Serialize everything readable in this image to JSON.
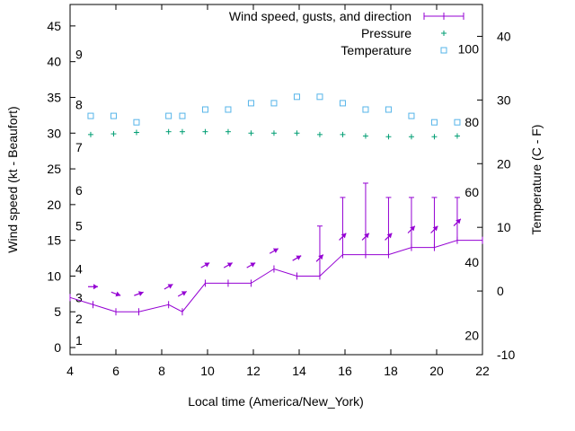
{
  "chart_data": {
    "type": "line",
    "xlabel": "Local time (America/New_York)",
    "ylabel": "Wind speed (kt - Beaufort)",
    "y2label": "Temperature (C - F)",
    "xlim": [
      4,
      22
    ],
    "ylim": [
      -1,
      48
    ],
    "y2lim": [
      -10,
      45
    ],
    "x_ticks": [
      4,
      6,
      8,
      10,
      12,
      14,
      16,
      18,
      20,
      22
    ],
    "y_ticks": [
      0,
      5,
      10,
      15,
      20,
      25,
      30,
      35,
      40,
      45
    ],
    "y2_ticks": [
      -10,
      0,
      10,
      20,
      30,
      40
    ],
    "beaufort_labels": [
      {
        "label": "1",
        "y": 1
      },
      {
        "label": "2",
        "y": 4
      },
      {
        "label": "3",
        "y": 7
      },
      {
        "label": "4",
        "y": 11
      },
      {
        "label": "5",
        "y": 17
      },
      {
        "label": "6",
        "y": 22
      },
      {
        "label": "7",
        "y": 28
      },
      {
        "label": "8",
        "y": 34
      },
      {
        "label": "9",
        "y": 41
      }
    ],
    "fahrenheit_labels": [
      {
        "label": "20",
        "y2": -7
      },
      {
        "label": "40",
        "y2": 4.5
      },
      {
        "label": "60",
        "y2": 15.5
      },
      {
        "label": "80",
        "y2": 26.5
      },
      {
        "label": "100",
        "y2": 38
      }
    ],
    "legend_position": "top-right",
    "colors": {
      "wind": "#9400d3",
      "pressure": "#009e73",
      "temperature": "#56b4e9"
    },
    "series": [
      {
        "name": "Wind speed, gusts, and direction",
        "x": [
          4,
          5,
          6,
          7,
          8.3,
          8.9,
          9.9,
          10.9,
          11.9,
          12.9,
          13.9,
          14.9,
          15.9,
          16.9,
          17.9,
          18.9,
          19.9,
          20.9,
          22
        ],
        "y": [
          7,
          6,
          5,
          5,
          6,
          5,
          9,
          9,
          9,
          11,
          10,
          10,
          13,
          13,
          13,
          14,
          14,
          15,
          15
        ],
        "gust": [
          null,
          null,
          null,
          null,
          null,
          null,
          null,
          null,
          null,
          null,
          null,
          17,
          21,
          23,
          21,
          21,
          21,
          21,
          null
        ],
        "direction_deg": [
          null,
          270,
          290,
          250,
          240,
          240,
          240,
          240,
          240,
          240,
          240,
          225,
          225,
          225,
          225,
          225,
          225,
          225,
          null
        ]
      },
      {
        "name": "Pressure",
        "x": [
          4.9,
          5.9,
          6.9,
          8.3,
          8.9,
          9.9,
          10.9,
          11.9,
          12.9,
          13.9,
          14.9,
          15.9,
          16.9,
          17.9,
          18.9,
          19.9,
          20.9
        ],
        "y": [
          29.8,
          29.9,
          30.1,
          30.2,
          30.2,
          30.2,
          30.2,
          30.0,
          30.0,
          30.0,
          29.8,
          29.8,
          29.6,
          29.5,
          29.5,
          29.5,
          29.6
        ]
      },
      {
        "name": "Temperature",
        "x": [
          4.9,
          5.9,
          6.9,
          8.3,
          8.9,
          9.9,
          10.9,
          11.9,
          12.9,
          13.9,
          14.9,
          15.9,
          16.9,
          17.9,
          18.9,
          19.9,
          20.9
        ],
        "y2": [
          27.5,
          27.5,
          26.5,
          27.5,
          27.5,
          28.5,
          28.5,
          29.5,
          29.5,
          30.5,
          30.5,
          29.5,
          28.5,
          28.5,
          27.5,
          26.5,
          26.5
        ]
      }
    ]
  }
}
